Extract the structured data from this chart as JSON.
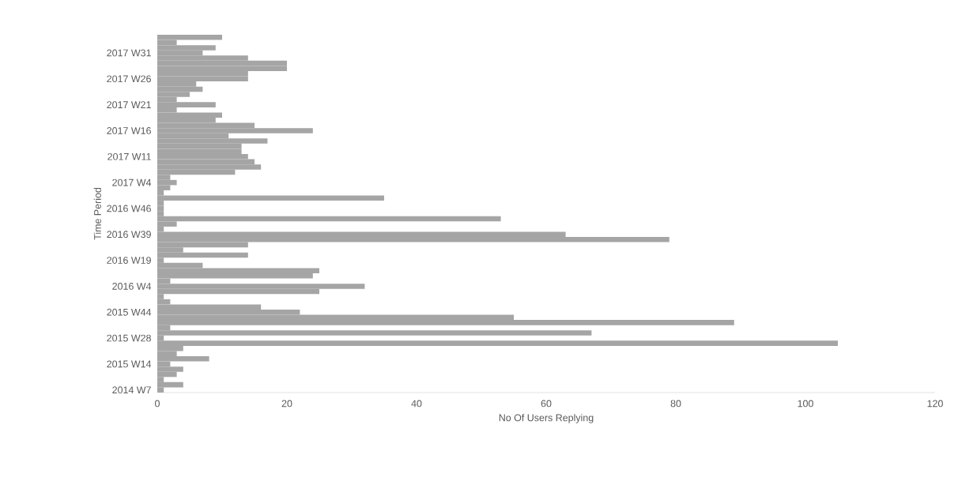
{
  "chart_data": {
    "type": "bar",
    "orientation": "horizontal",
    "xlabel": "No Of Users Replying",
    "ylabel": "Time Period",
    "categories": [
      null,
      null,
      null,
      "2017 W31",
      null,
      null,
      null,
      null,
      "2017 W26",
      null,
      null,
      null,
      null,
      "2017 W21",
      null,
      null,
      null,
      null,
      "2017 W16",
      null,
      null,
      null,
      null,
      "2017 W11",
      null,
      null,
      null,
      null,
      "2017 W4",
      null,
      null,
      null,
      null,
      "2016 W46",
      null,
      null,
      null,
      null,
      "2016 W39",
      null,
      null,
      null,
      null,
      "2016 W19",
      null,
      null,
      null,
      null,
      "2016 W4",
      null,
      null,
      null,
      null,
      "2015 W44",
      null,
      null,
      null,
      null,
      "2015 W28",
      null,
      null,
      null,
      null,
      "2015 W14",
      null,
      null,
      null,
      null,
      "2014 W7"
    ],
    "values": [
      10,
      3,
      9,
      7,
      14,
      20,
      20,
      14,
      14,
      6,
      7,
      5,
      3,
      9,
      3,
      10,
      9,
      15,
      24,
      11,
      17,
      13,
      13,
      14,
      15,
      16,
      12,
      2,
      3,
      2,
      1,
      35,
      1,
      1,
      1,
      53,
      3,
      1,
      63,
      79,
      14,
      4,
      14,
      1,
      7,
      25,
      24,
      2,
      32,
      25,
      1,
      2,
      16,
      22,
      55,
      89,
      2,
      67,
      1,
      105,
      4,
      3,
      8,
      2,
      4,
      3,
      1,
      4,
      1
    ],
    "color": "#a5a5a5",
    "xlim": [
      0,
      120
    ],
    "xticks": [
      0,
      20,
      40,
      60,
      80,
      100,
      120
    ]
  }
}
